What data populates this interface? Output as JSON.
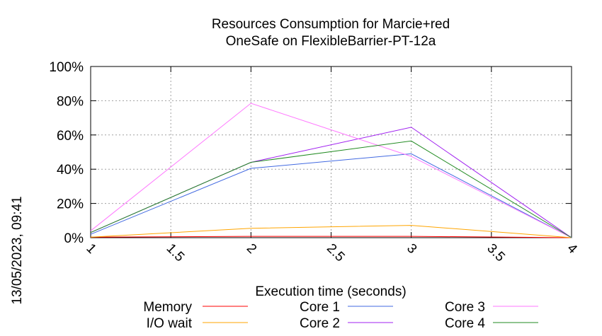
{
  "chart_data": {
    "type": "line",
    "title_line1": "Resources Consumption for Marcie+red",
    "title_line2": "OneSafe on FlexibleBarrier-PT-12a",
    "xlabel": "Execution time (seconds)",
    "ylabel": "",
    "timestamp": "13/05/2023, 09:41",
    "xlim": [
      1,
      4
    ],
    "ylim": [
      0,
      100
    ],
    "x_ticks": [
      1,
      1.5,
      2,
      2.5,
      3,
      3.5,
      4
    ],
    "x_tick_labels": [
      "1",
      "1.5",
      "2",
      "2.5",
      "3",
      "3.5",
      "4"
    ],
    "y_ticks": [
      0,
      20,
      40,
      60,
      80,
      100
    ],
    "y_tick_labels": [
      "0%",
      "20%",
      "40%",
      "60%",
      "80%",
      "100%"
    ],
    "grid": true,
    "legend_position": "bottom",
    "series": [
      {
        "name": "Memory",
        "color": "#ff0000",
        "x": [
          1,
          2,
          3,
          4
        ],
        "y": [
          0.3,
          0.8,
          0.8,
          0
        ]
      },
      {
        "name": "I/O wait",
        "color": "#ffa500",
        "x": [
          1,
          2,
          3,
          4
        ],
        "y": [
          0.3,
          5.5,
          7.2,
          0
        ]
      },
      {
        "name": "Core 1",
        "color": "#4169e1",
        "x": [
          1,
          2,
          3,
          4
        ],
        "y": [
          2,
          40.5,
          49,
          0
        ]
      },
      {
        "name": "Core 2",
        "color": "#a020f0",
        "x": [
          1,
          2,
          3,
          4
        ],
        "y": [
          3,
          44,
          64.5,
          0
        ]
      },
      {
        "name": "Core 3",
        "color": "#ff77ff",
        "x": [
          1,
          2,
          3,
          4
        ],
        "y": [
          4,
          78.5,
          47.5,
          0
        ]
      },
      {
        "name": "Core 4",
        "color": "#228b22",
        "x": [
          1,
          2,
          3,
          4
        ],
        "y": [
          3,
          44,
          56.5,
          0
        ]
      }
    ]
  }
}
